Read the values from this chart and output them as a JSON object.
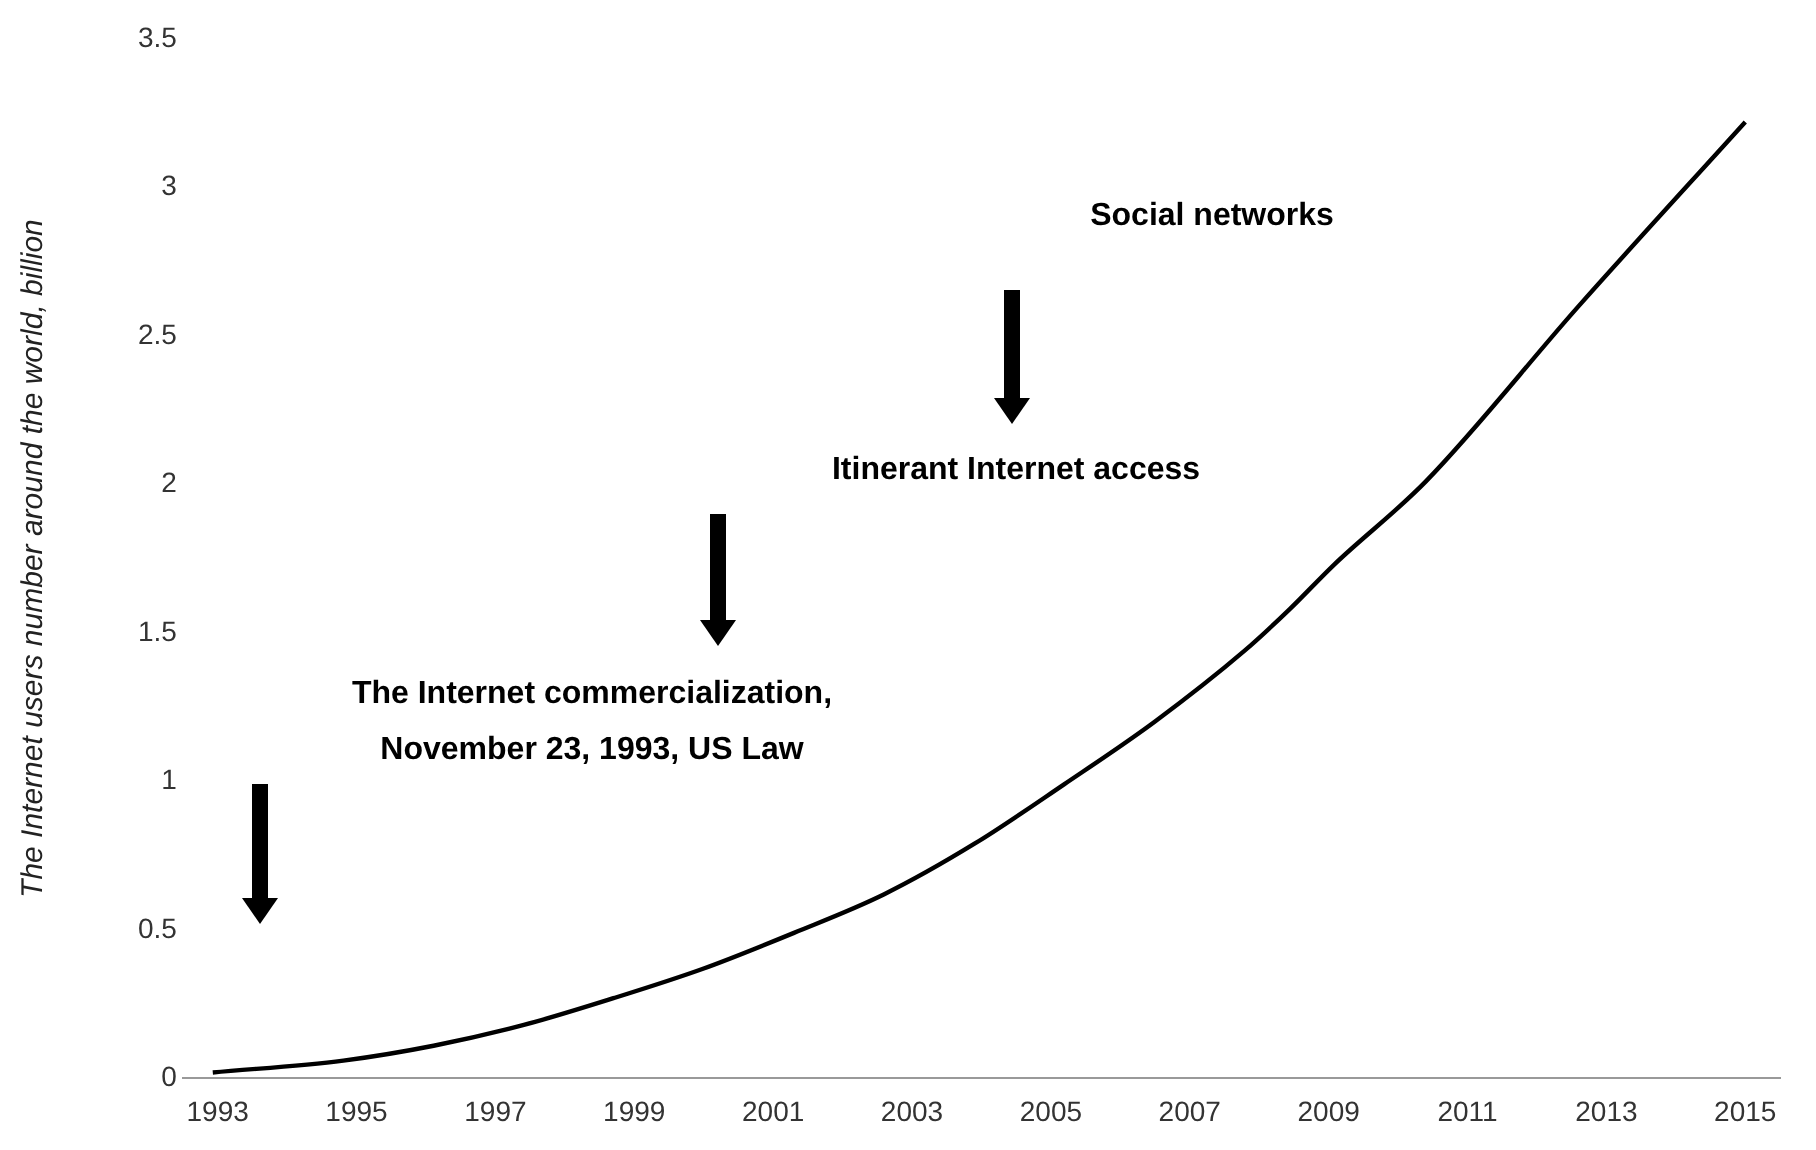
{
  "chart_data": {
    "type": "line",
    "ylabel": "The Internet users number around the world, billion",
    "x": [
      1992.93,
      1994.81,
      1996.11,
      1997.41,
      1998.7,
      2000.0,
      2001.3,
      2002.6,
      2003.9,
      2005.19,
      2006.49,
      2007.79,
      2008.44,
      2009.08,
      2010.4,
      2012.6,
      2015.0
    ],
    "series": [
      {
        "color": "#000000",
        "values": [
          0.02,
          0.06,
          0.11,
          0.18,
          0.27,
          0.37,
          0.49,
          0.62,
          0.79,
          0.99,
          1.2,
          1.44,
          1.58,
          1.73,
          2.01,
          2.6,
          3.22
        ]
      }
    ],
    "xlim": [
      1992.5,
      2015.5
    ],
    "xticks": [
      1993,
      1995,
      1997,
      1999,
      2001,
      2003,
      2005,
      2007,
      2009,
      2011,
      2013,
      2015
    ],
    "ylim": [
      0,
      3.5
    ],
    "yticks": [
      0,
      0.5,
      1,
      1.5,
      2,
      2.5,
      3,
      3.5
    ],
    "annotations": [
      "Social networks",
      "Itinerant Internet access",
      "The Internet commercialization,\nNovember 23, 1993, US Law"
    ],
    "grid": false,
    "legend": false,
    "marker": "none",
    "line_style": "solid"
  }
}
